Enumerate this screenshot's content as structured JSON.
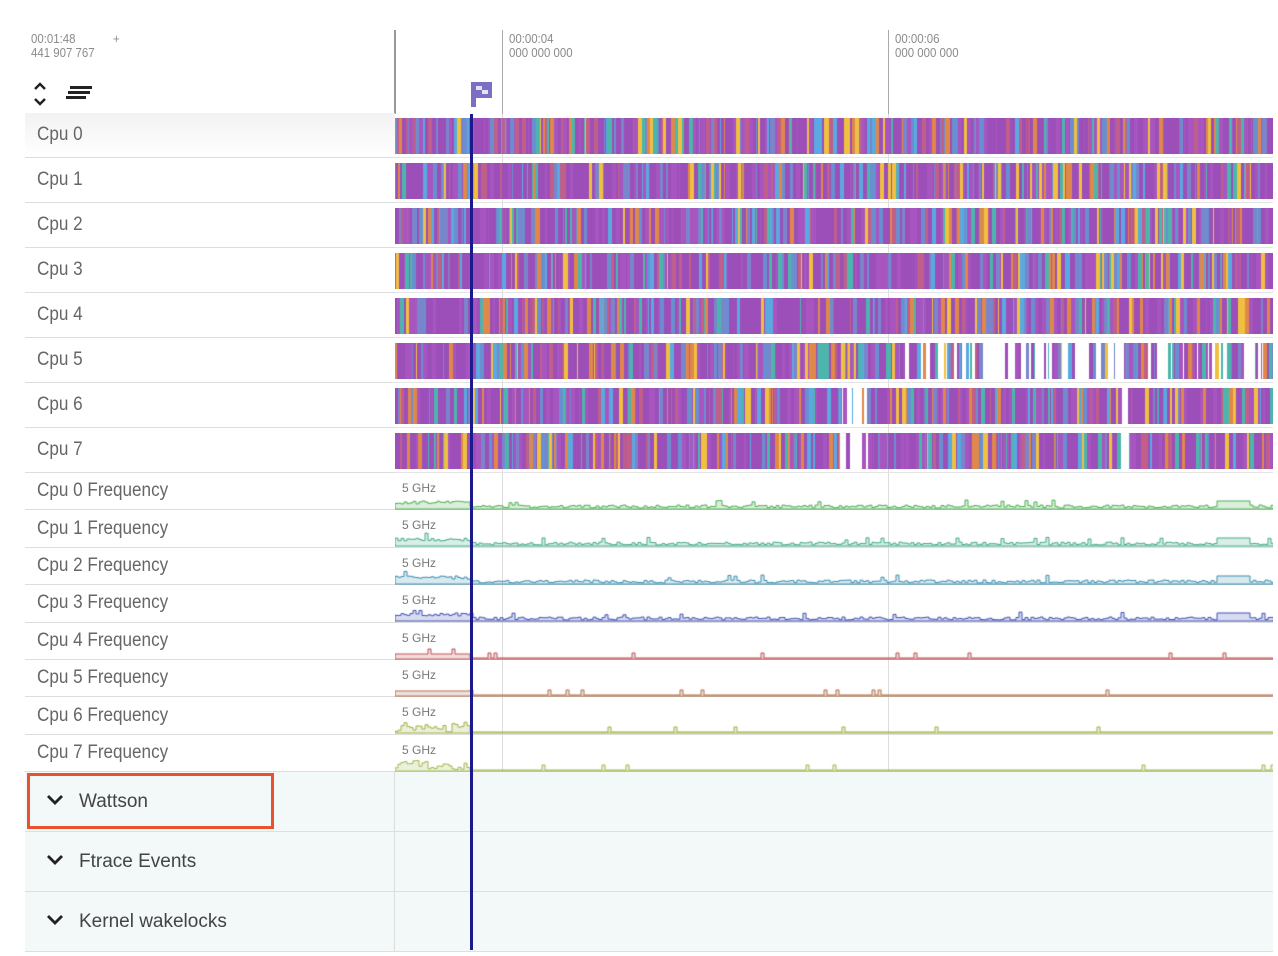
{
  "header": {
    "offset_time": "00:01:48",
    "offset_plus": "+",
    "offset_ns": "441 907 767",
    "ticks": [
      {
        "time": "00:00:04",
        "ns": "000 000 000"
      },
      {
        "time": "00:00:06",
        "ns": "000 000 000"
      }
    ]
  },
  "toolbar": {
    "expand_collapse_icon": "chevron-up-down-icon",
    "sort_icon": "lines-icon"
  },
  "flag": {
    "icon": "flag-icon",
    "color": "#7b6fc4"
  },
  "marker_color": "#1a1a8c",
  "cpu_tracks": [
    {
      "label": "Cpu 0"
    },
    {
      "label": "Cpu 1"
    },
    {
      "label": "Cpu 2"
    },
    {
      "label": "Cpu 3"
    },
    {
      "label": "Cpu 4"
    },
    {
      "label": "Cpu 5"
    },
    {
      "label": "Cpu 6"
    },
    {
      "label": "Cpu 7"
    }
  ],
  "freq_tracks": [
    {
      "label": "Cpu 0 Frequency",
      "scale": "5 GHz",
      "color": "#4caf50"
    },
    {
      "label": "Cpu 1 Frequency",
      "scale": "5 GHz",
      "color": "#43a88a"
    },
    {
      "label": "Cpu 2 Frequency",
      "scale": "5 GHz",
      "color": "#3a8fb0"
    },
    {
      "label": "Cpu 3 Frequency",
      "scale": "5 GHz",
      "color": "#3f51b5"
    },
    {
      "label": "Cpu 4 Frequency",
      "scale": "5 GHz",
      "color": "#c05050"
    },
    {
      "label": "Cpu 5 Frequency",
      "scale": "5 GHz",
      "color": "#b0704a"
    },
    {
      "label": "Cpu 6 Frequency",
      "scale": "5 GHz",
      "color": "#a0b040"
    },
    {
      "label": "Cpu 7 Frequency",
      "scale": "5 GHz",
      "color": "#a0b850"
    }
  ],
  "groups": [
    {
      "label": "Wattson",
      "highlighted": true
    },
    {
      "label": "Ftrace Events"
    },
    {
      "label": "Kernel wakelocks"
    }
  ],
  "highlight_color": "#e8522f",
  "slice_colors": [
    "#9c4fb8",
    "#a855c0",
    "#5aa9e0",
    "#4db6ac",
    "#7986cb",
    "#e0884a",
    "#c05f8a",
    "#f0c040",
    "#6a8fd0"
  ]
}
